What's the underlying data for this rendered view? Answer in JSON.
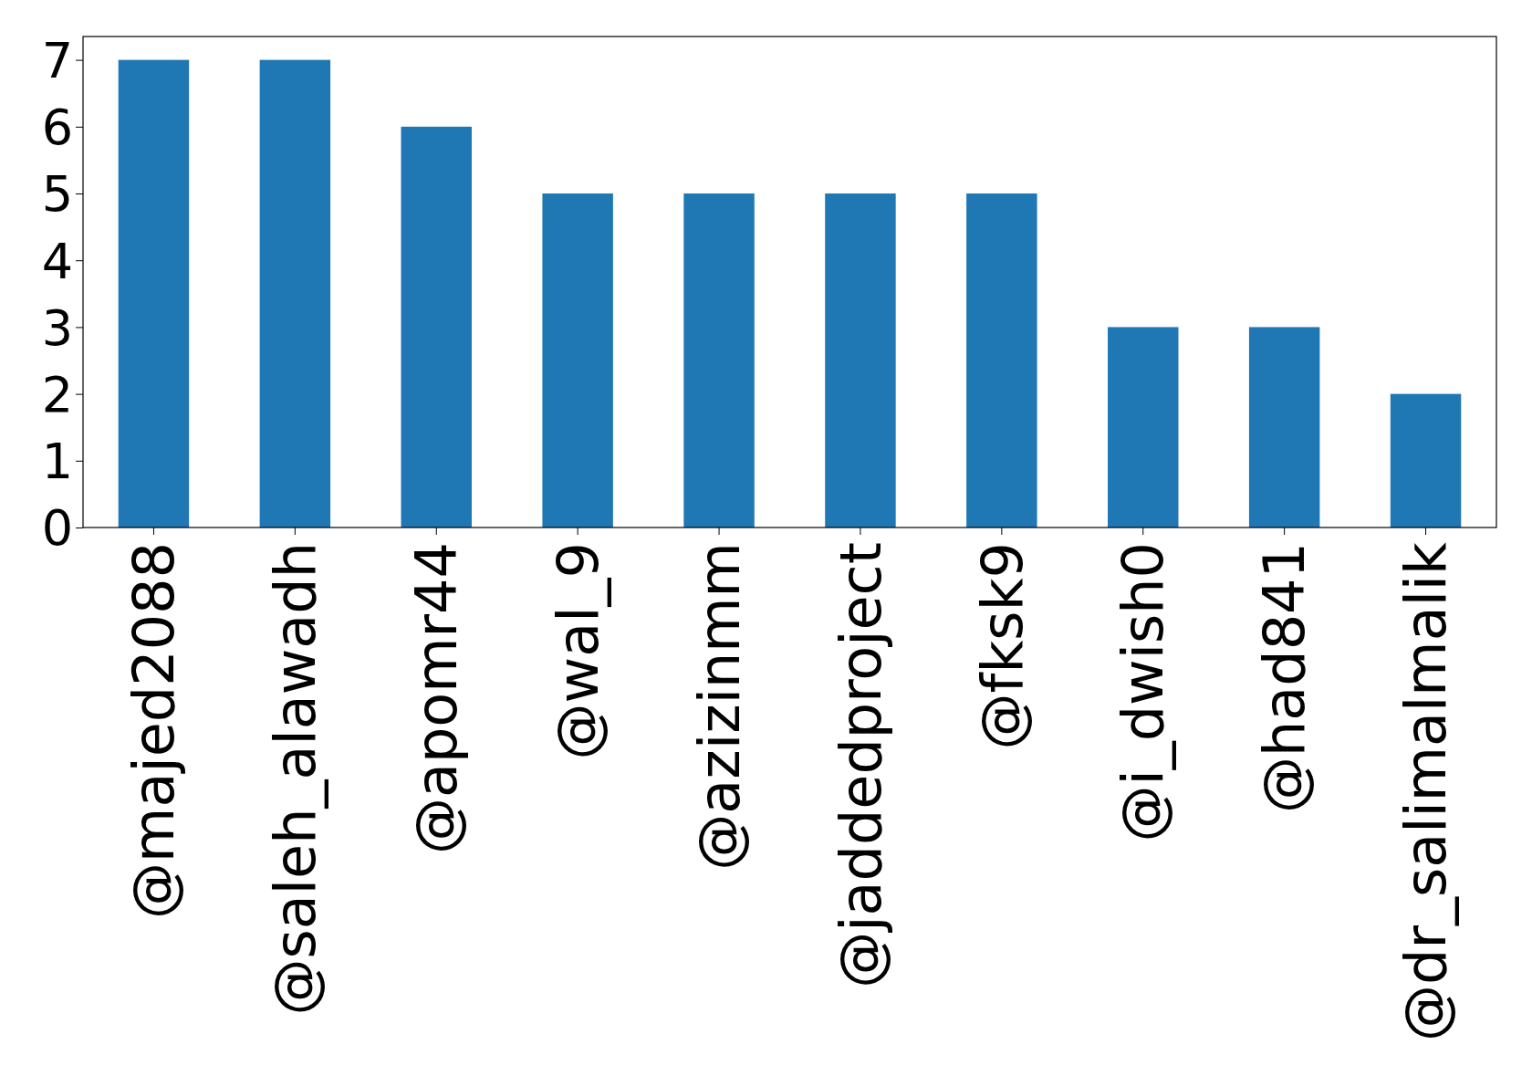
{
  "chart_data": {
    "type": "bar",
    "categories": [
      "@majed2088",
      "@saleh_alawadh",
      "@apomr44",
      "@wal_9",
      "@azizinmm",
      "@jaddedproject",
      "@fksk9",
      "@i_dwish0",
      "@had841",
      "@dr_salimalmalik"
    ],
    "values": [
      7,
      7,
      6,
      5,
      5,
      5,
      5,
      3,
      3,
      2
    ],
    "color": "#1f77b4",
    "ylim": [
      0,
      7.35
    ],
    "yticks": [
      0,
      1,
      2,
      3,
      4,
      5,
      6,
      7
    ],
    "grid": false
  }
}
